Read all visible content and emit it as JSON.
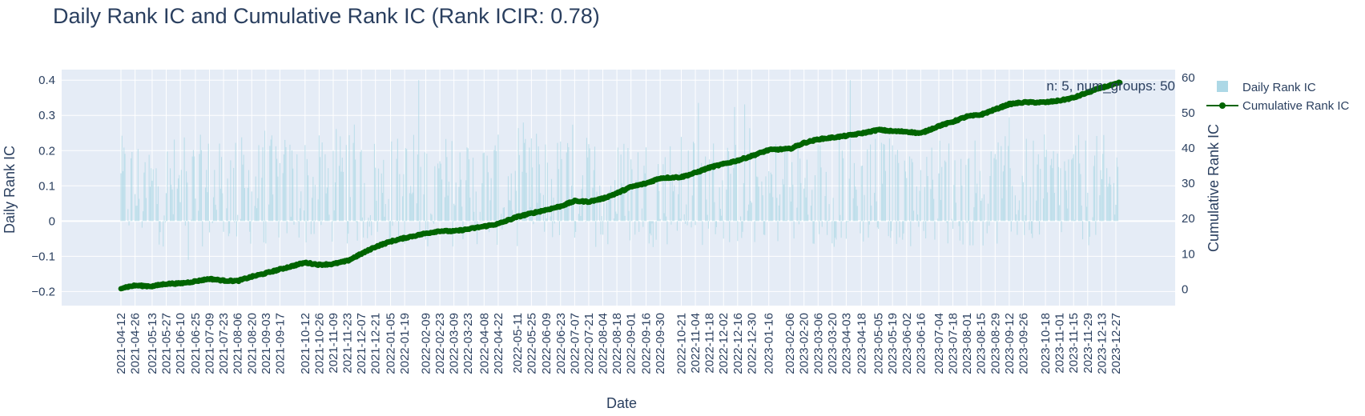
{
  "chart_data": {
    "type": "bar+line",
    "title": "Daily Rank IC and Cumulative Rank IC (Rank ICIR: 0.78)",
    "xlabel": "Date",
    "ylabel_left": "Daily Rank IC",
    "ylabel_right": "Cumulative Rank IC",
    "annotation": "n: 5, num_groups: 50",
    "ylim_left": [
      -0.24,
      0.43
    ],
    "ylim_right": [
      -4.7,
      62.3
    ],
    "yticks_left": [
      -0.2,
      -0.1,
      0,
      0.1,
      0.2,
      0.3,
      0.4
    ],
    "ytick_labels_left": [
      "−0.2",
      "−0.1",
      "0",
      "0.1",
      "0.2",
      "0.3",
      "0.4"
    ],
    "yticks_right": [
      0,
      10,
      20,
      30,
      40,
      50,
      60
    ],
    "ytick_labels_right": [
      "0",
      "10",
      "20",
      "30",
      "40",
      "50",
      "60"
    ],
    "grid": true,
    "legend_position": "top-right",
    "x_start": "2021-04-12",
    "x_end": "2023-12-31",
    "x_tick_labels": [
      "2021-04-12",
      "2021-04-26",
      "2021-05-13",
      "2021-05-27",
      "2021-06-10",
      "2021-06-25",
      "2021-07-09",
      "2021-07-23",
      "2021-08-06",
      "2021-08-20",
      "2021-09-03",
      "2021-09-17",
      "2021-10-12",
      "2021-10-26",
      "2021-11-09",
      "2021-11-23",
      "2021-12-07",
      "2021-12-21",
      "2022-01-05",
      "2022-01-19",
      "2022-02-09",
      "2022-02-23",
      "2022-03-09",
      "2022-03-23",
      "2022-04-08",
      "2022-04-22",
      "2022-05-11",
      "2022-05-25",
      "2022-06-09",
      "2022-06-23",
      "2022-07-07",
      "2022-07-21",
      "2022-08-04",
      "2022-08-18",
      "2022-09-01",
      "2022-09-16",
      "2022-09-30",
      "2022-10-21",
      "2022-11-04",
      "2022-11-18",
      "2022-12-02",
      "2022-12-16",
      "2022-12-30",
      "2023-01-16",
      "2023-02-06",
      "2023-02-20",
      "2023-03-06",
      "2023-03-20",
      "2023-04-03",
      "2023-04-18",
      "2023-05-05",
      "2023-05-19",
      "2023-06-02",
      "2023-06-16",
      "2023-07-04",
      "2023-07-18",
      "2023-08-01",
      "2023-08-15",
      "2023-08-29",
      "2023-09-12",
      "2023-09-26",
      "2023-10-18",
      "2023-11-01",
      "2023-11-15",
      "2023-11-29",
      "2023-12-13",
      "2023-12-27"
    ],
    "series": [
      {
        "name": "Daily Rank IC",
        "type": "bar",
        "color": "#add8e6",
        "values_note": "daily values, approximately between -0.2 and 0.4"
      },
      {
        "name": "Cumulative Rank IC",
        "type": "line+markers",
        "color": "#006400",
        "points": [
          [
            "2021-04-12",
            0.3
          ],
          [
            "2021-04-26",
            1.0
          ],
          [
            "2021-05-13",
            0.8
          ],
          [
            "2021-05-27",
            1.5
          ],
          [
            "2021-06-10",
            1.6
          ],
          [
            "2021-06-25",
            2.2
          ],
          [
            "2021-07-09",
            2.9
          ],
          [
            "2021-07-23",
            2.4
          ],
          [
            "2021-08-06",
            2.3
          ],
          [
            "2021-08-20",
            3.5
          ],
          [
            "2021-09-03",
            4.5
          ],
          [
            "2021-09-17",
            5.6
          ],
          [
            "2021-10-12",
            7.5
          ],
          [
            "2021-10-26",
            6.9
          ],
          [
            "2021-11-09",
            7.1
          ],
          [
            "2021-11-23",
            8.0
          ],
          [
            "2021-12-07",
            10.0
          ],
          [
            "2021-12-21",
            12.0
          ],
          [
            "2022-01-05",
            13.5
          ],
          [
            "2022-01-19",
            14.5
          ],
          [
            "2022-02-09",
            15.8
          ],
          [
            "2022-02-23",
            16.5
          ],
          [
            "2022-03-09",
            16.4
          ],
          [
            "2022-03-23",
            17.0
          ],
          [
            "2022-04-08",
            17.8
          ],
          [
            "2022-04-22",
            18.5
          ],
          [
            "2022-05-11",
            20.5
          ],
          [
            "2022-05-25",
            21.5
          ],
          [
            "2022-06-09",
            22.5
          ],
          [
            "2022-06-23",
            23.5
          ],
          [
            "2022-07-07",
            25.0
          ],
          [
            "2022-07-21",
            24.8
          ],
          [
            "2022-08-04",
            25.7
          ],
          [
            "2022-08-18",
            27.2
          ],
          [
            "2022-09-01",
            29.0
          ],
          [
            "2022-09-16",
            30.0
          ],
          [
            "2022-09-30",
            31.5
          ],
          [
            "2022-10-21",
            31.8
          ],
          [
            "2022-11-04",
            33.0
          ],
          [
            "2022-11-18",
            34.5
          ],
          [
            "2022-12-02",
            35.5
          ],
          [
            "2022-12-16",
            36.5
          ],
          [
            "2022-12-30",
            37.8
          ],
          [
            "2023-01-16",
            39.5
          ],
          [
            "2023-02-06",
            39.8
          ],
          [
            "2023-02-20",
            41.5
          ],
          [
            "2023-03-06",
            42.5
          ],
          [
            "2023-03-20",
            43.0
          ],
          [
            "2023-04-03",
            43.5
          ],
          [
            "2023-04-18",
            44.2
          ],
          [
            "2023-05-05",
            45.2
          ],
          [
            "2023-05-19",
            44.8
          ],
          [
            "2023-06-02",
            44.7
          ],
          [
            "2023-06-16",
            44.2
          ],
          [
            "2023-07-04",
            46.3
          ],
          [
            "2023-07-18",
            47.5
          ],
          [
            "2023-08-01",
            49.0
          ],
          [
            "2023-08-15",
            49.5
          ],
          [
            "2023-08-29",
            51.0
          ],
          [
            "2023-09-12",
            52.5
          ],
          [
            "2023-09-26",
            53.0
          ],
          [
            "2023-10-18",
            53.0
          ],
          [
            "2023-11-01",
            53.5
          ],
          [
            "2023-11-15",
            54.3
          ],
          [
            "2023-11-29",
            55.8
          ],
          [
            "2023-12-13",
            57.2
          ],
          [
            "2023-12-27",
            58.2
          ],
          [
            "2023-12-31",
            58.6
          ]
        ]
      }
    ]
  }
}
